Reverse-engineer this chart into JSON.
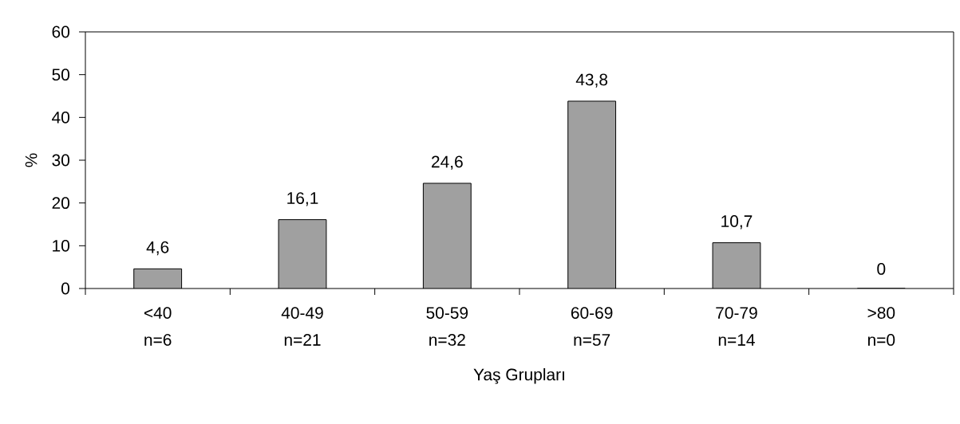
{
  "chart_data": {
    "type": "bar",
    "categories": [
      "<40 n=6",
      "40-49 n=21",
      "50-59 n=32",
      "60-69 n=57",
      "70-79 n=14",
      ">80 n=0"
    ],
    "values": [
      4.6,
      16.1,
      24.6,
      43.8,
      10.7,
      0
    ],
    "value_labels": [
      "4,6",
      "16,1",
      "24,6",
      "43,8",
      "10,7",
      "0"
    ],
    "color": "#a0a0a0",
    "xlabel": "Yaş Grupları",
    "ylabel": "%",
    "ylim": [
      0,
      60
    ],
    "yticks": [
      0,
      10,
      20,
      30,
      40,
      50,
      60
    ],
    "grid": false
  }
}
